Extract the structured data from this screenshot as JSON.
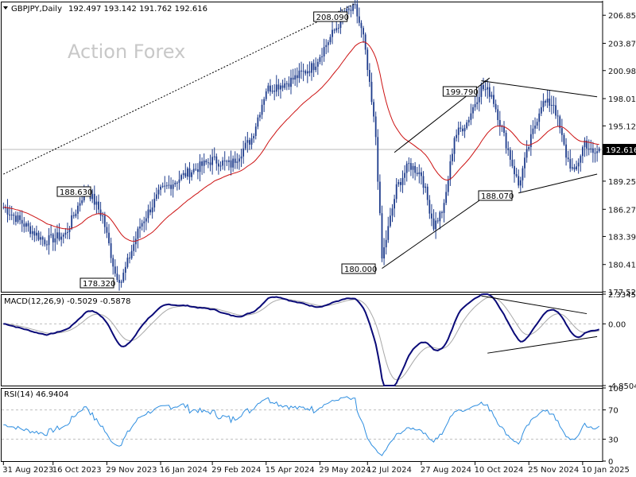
{
  "chart_data": [
    {
      "type": "candlestick",
      "panel": "price",
      "title": "GBPJPY,Daily",
      "ohlc_label": "192.497 193.142 191.762 192.616",
      "watermark": "Action Forex",
      "ylim": [
        177.525,
        208.3
      ],
      "y_ticks": [
        "206.850",
        "203.875",
        "200.985",
        "198.010",
        "195.120",
        "192.616",
        "189.255",
        "186.270",
        "183.390",
        "180.415",
        "177.525"
      ],
      "current_price": "192.616",
      "current_price_value": 192.616,
      "moving_average": "red",
      "annotations": [
        {
          "label": "208.090",
          "value": 208.09,
          "x_index": 170
        },
        {
          "label": "199.790",
          "value": 199.79,
          "x_index": 231
        },
        {
          "label": "188.630",
          "value": 188.63,
          "x_index": 40
        },
        {
          "label": "188.070",
          "value": 188.07,
          "x_index": 251
        },
        {
          "label": "178.320",
          "value": 178.32,
          "x_index": 57
        },
        {
          "label": "180.000",
          "value": 180.0,
          "x_index": 183
        }
      ],
      "trend_lines": [
        {
          "style": "dotted",
          "from": [
            0,
            190.0
          ],
          "to": [
            170,
            208.09
          ]
        },
        {
          "style": "solid",
          "from": [
            183,
            180.0
          ],
          "to": [
            230,
            187.2
          ]
        },
        {
          "style": "solid",
          "from": [
            189,
            192.3
          ],
          "to": [
            235,
            200.2
          ]
        },
        {
          "style": "solid",
          "from": [
            231,
            199.9
          ],
          "to": [
            287,
            198.2
          ]
        },
        {
          "style": "solid",
          "from": [
            249,
            188.0
          ],
          "to": [
            287,
            190.0
          ]
        }
      ]
    },
    {
      "type": "line",
      "panel": "macd",
      "title": "MACD(12,26,9) -0.5029 -0.5878",
      "ylim": [
        -4.85,
        2.3345
      ],
      "y_ticks": [
        "2.3345",
        "0.00",
        "-4.8504"
      ],
      "series": [
        {
          "role": "macd",
          "color": "#0a0a78"
        },
        {
          "role": "signal",
          "color": "#a8a8a8"
        }
      ],
      "trend_lines": [
        {
          "from": [
            231,
            2.2
          ],
          "to": [
            282,
            0.8
          ]
        },
        {
          "from": [
            234,
            -2.3
          ],
          "to": [
            287,
            -1.0
          ]
        }
      ]
    },
    {
      "type": "line",
      "panel": "rsi",
      "title": "RSI(14) 46.9404",
      "ylim": [
        0,
        100
      ],
      "y_ticks": [
        "100",
        "70",
        "30",
        "0"
      ],
      "levels": [
        70,
        30
      ],
      "series": [
        {
          "role": "rsi",
          "color": "#2e8ee0"
        }
      ]
    }
  ],
  "x_axis": {
    "labels": [
      {
        "text": "31 Aug 2023",
        "index": 0
      },
      {
        "text": "16 Oct 2023",
        "index": 24
      },
      {
        "text": "29 Nov 2023",
        "index": 50
      },
      {
        "text": "16 Jan 2024",
        "index": 76
      },
      {
        "text": "29 Feb 2024",
        "index": 101
      },
      {
        "text": "15 Apr 2024",
        "index": 127
      },
      {
        "text": "29 May 2024",
        "index": 153
      },
      {
        "text": "12 Jul 2024",
        "index": 176
      },
      {
        "text": "27 Aug 2024",
        "index": 202
      },
      {
        "text": "10 Oct 2024",
        "index": 228
      },
      {
        "text": "25 Nov 2024",
        "index": 254
      },
      {
        "text": "10 Jan 2025",
        "index": 280
      }
    ]
  },
  "colors": {
    "candle_up": "#1e3c8c",
    "candle_down": "#2a4b9c",
    "ma": "#cc1111",
    "grid_dash": "#bfbfbf",
    "panel_border": "#000000"
  }
}
